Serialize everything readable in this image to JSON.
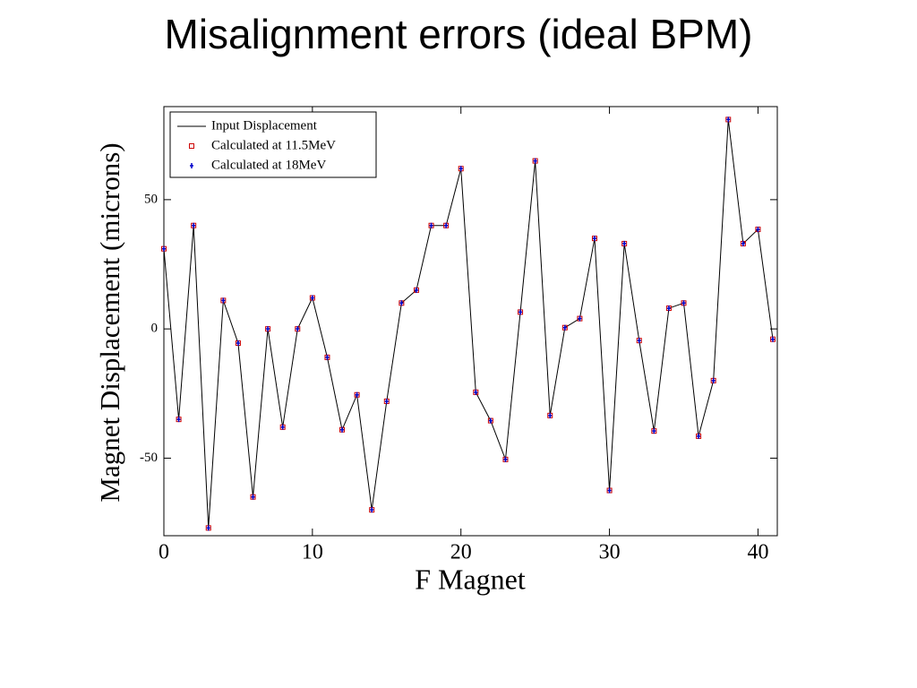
{
  "chart_data": {
    "type": "line",
    "title": "Misalignment errors (ideal BPM)",
    "xlabel": "F Magnet",
    "ylabel": "Magnet Displacement (microns)",
    "x": [
      0,
      1,
      2,
      3,
      4,
      5,
      6,
      7,
      8,
      9,
      10,
      11,
      12,
      13,
      14,
      15,
      16,
      17,
      18,
      19,
      20,
      21,
      22,
      23,
      24,
      25,
      26,
      27,
      28,
      29,
      30,
      31,
      32,
      33,
      34,
      35,
      36,
      37,
      38,
      39,
      40,
      41
    ],
    "series": [
      {
        "name": "Input Displacement",
        "color": "#000000",
        "marker": "line",
        "values": [
          31,
          -35,
          40,
          -77,
          11,
          -5.5,
          -65,
          0,
          -38,
          0,
          12,
          -11,
          -39,
          -25.5,
          -70,
          -28,
          10,
          15,
          40,
          40,
          62,
          -24.5,
          -35.5,
          -50.5,
          6.5,
          65,
          -33.5,
          0.5,
          4,
          35,
          -62.5,
          33,
          -4.5,
          -39.5,
          8,
          10,
          -41.5,
          -20,
          81,
          33,
          38.5,
          -4
        ]
      },
      {
        "name": "Calculated at 11.5MeV",
        "color": "#cc0000",
        "marker": "square",
        "values": [
          31,
          -35,
          40,
          -77,
          11,
          -5.5,
          -65,
          0,
          -38,
          0,
          12,
          -11,
          -39,
          -25.5,
          -70,
          -28,
          10,
          15,
          40,
          40,
          62,
          -24.5,
          -35.5,
          -50.5,
          6.5,
          65,
          -33.5,
          0.5,
          4,
          35,
          -62.5,
          33,
          -4.5,
          -39.5,
          8,
          10,
          -41.5,
          -20,
          81,
          33,
          38.5,
          -4
        ]
      },
      {
        "name": "Calculated at 18MeV",
        "color": "#0000cc",
        "marker": "plus",
        "values": [
          31,
          -35,
          40,
          -77,
          11,
          -5.5,
          -65,
          0,
          -38,
          0,
          12,
          -11,
          -39,
          -25.5,
          -70,
          -28,
          10,
          15,
          40,
          40,
          62,
          -24.5,
          -35.5,
          -50.5,
          6.5,
          65,
          -33.5,
          0.5,
          4,
          35,
          -62.5,
          33,
          -4.5,
          -39.5,
          8,
          10,
          -41.5,
          -20,
          81,
          33,
          38.5,
          -4
        ]
      }
    ],
    "xlim": [
      0,
      41.3
    ],
    "xticks": [
      0,
      10,
      20,
      30,
      40
    ],
    "ylim": [
      -80,
      86
    ],
    "yticks": [
      -50,
      0,
      50
    ],
    "legend": "upper-left"
  }
}
